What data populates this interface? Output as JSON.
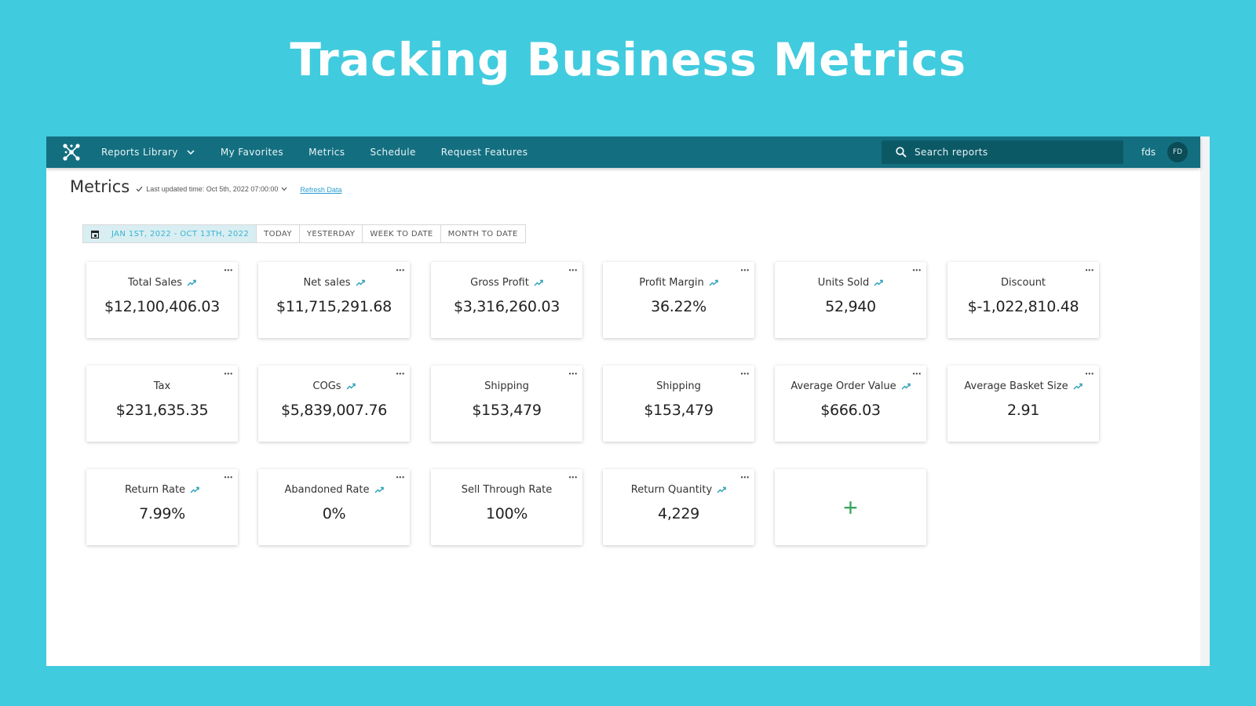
{
  "hero": {
    "title": "Tracking Business Metrics"
  },
  "nav": {
    "items": [
      {
        "label": "Reports Library"
      },
      {
        "label": "My Favorites"
      },
      {
        "label": "Metrics"
      },
      {
        "label": "Schedule"
      },
      {
        "label": "Request Features"
      }
    ],
    "search_placeholder": "Search reports",
    "user_name": "fds",
    "avatar_initials": "FD"
  },
  "header": {
    "title": "Metrics",
    "last_updated": "Last updated time: Oct 5th, 2022 07:00:00",
    "refresh_label": "Refresh Data"
  },
  "date_filter": {
    "range": "JAN 1ST, 2022 - OCT 13TH, 2022",
    "options": [
      "TODAY",
      "YESTERDAY",
      "WEEK TO DATE",
      "MONTH TO DATE"
    ]
  },
  "metrics": [
    {
      "label": "Total Sales",
      "value": "$12,100,406.03",
      "trend": true
    },
    {
      "label": "Net sales",
      "value": "$11,715,291.68",
      "trend": true
    },
    {
      "label": "Gross Profit",
      "value": "$3,316,260.03",
      "trend": true
    },
    {
      "label": "Profit Margin",
      "value": "36.22%",
      "trend": true
    },
    {
      "label": "Units Sold",
      "value": "52,940",
      "trend": true
    },
    {
      "label": "Discount",
      "value": "$-1,022,810.48",
      "trend": false
    },
    {
      "label": "Tax",
      "value": "$231,635.35",
      "trend": false
    },
    {
      "label": "COGs",
      "value": "$5,839,007.76",
      "trend": true
    },
    {
      "label": "Shipping",
      "value": "$153,479",
      "trend": false
    },
    {
      "label": "Shipping",
      "value": "$153,479",
      "trend": false
    },
    {
      "label": "Average Order Value",
      "value": "$666.03",
      "trend": true
    },
    {
      "label": "Average Basket Size",
      "value": "2.91",
      "trend": true
    },
    {
      "label": "Return Rate",
      "value": "7.99%",
      "trend": true
    },
    {
      "label": "Abandoned Rate",
      "value": "0%",
      "trend": true
    },
    {
      "label": "Sell Through Rate",
      "value": "100%",
      "trend": false
    },
    {
      "label": "Return Quantity",
      "value": "4,229",
      "trend": true
    }
  ],
  "add_card": {
    "symbol": "+"
  },
  "colors": {
    "background": "#41cbde",
    "navbar": "#136f80",
    "accent": "#38b3d0",
    "trend": "#2aa0b8",
    "add": "#3aa55c"
  },
  "icons": {
    "logo": "network-logo-icon",
    "search": "search-icon",
    "calendar": "calendar-icon",
    "trend": "trend-up-icon",
    "more": "more-dots-icon"
  }
}
